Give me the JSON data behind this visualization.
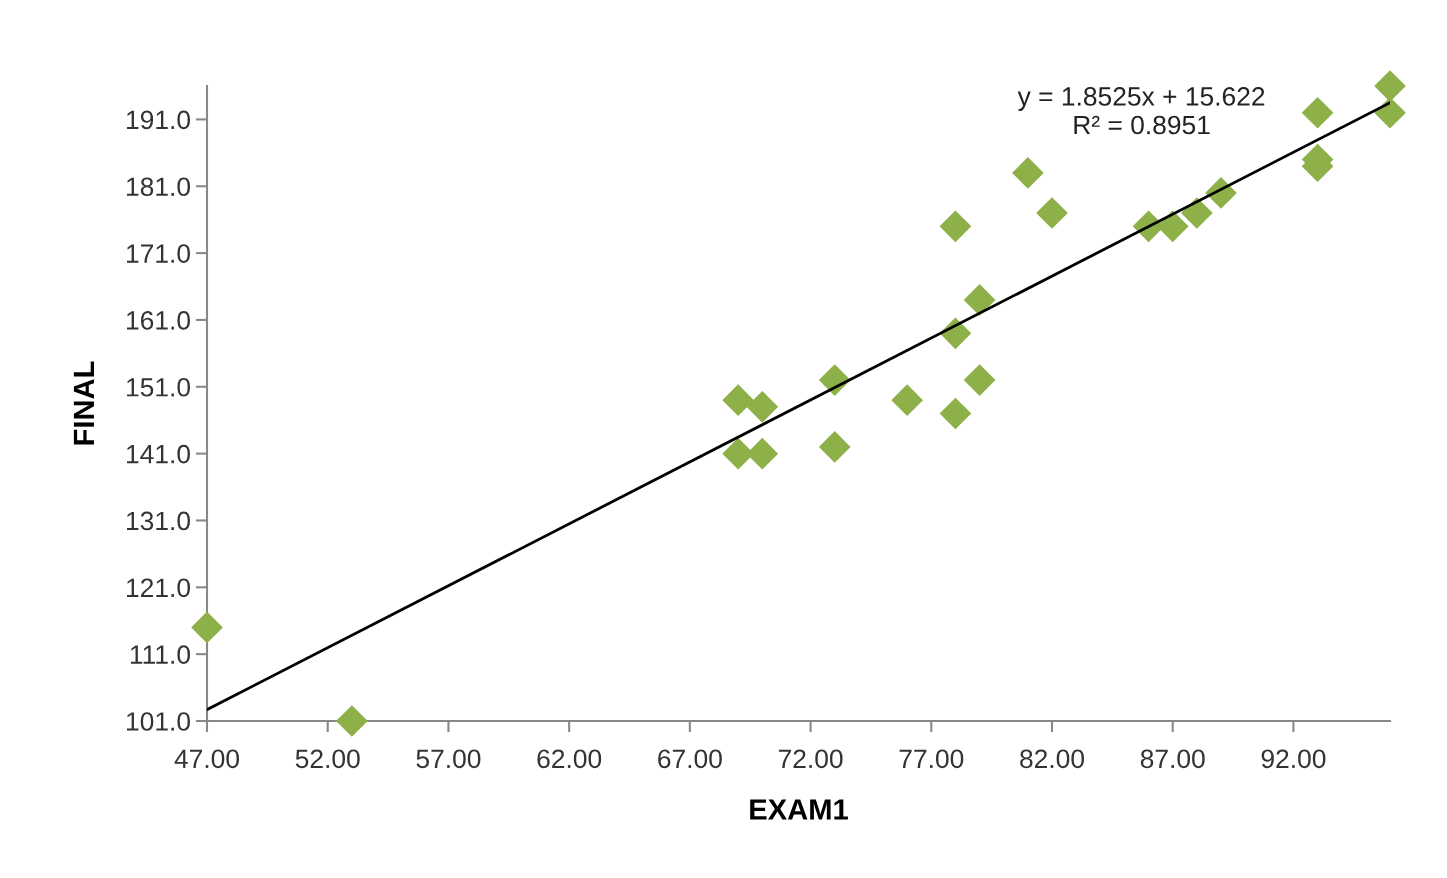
{
  "chart_data": {
    "type": "scatter",
    "xlabel": "EXAM1",
    "ylabel": "FINAL",
    "series": [
      {
        "color": "#8db048",
        "marker": "diamond",
        "x": [
          47,
          53,
          69,
          69,
          70,
          70,
          73,
          73,
          76,
          78,
          78,
          78,
          79,
          79,
          81,
          82,
          86,
          87,
          88,
          89,
          93,
          93,
          93,
          96,
          96
        ],
        "values": [
          115,
          101,
          149,
          141,
          148,
          141,
          152,
          142,
          149,
          175,
          159,
          147,
          164,
          152,
          183,
          177,
          175,
          175,
          177,
          180,
          192,
          185,
          184,
          196,
          192
        ]
      },
      {
        "type": "line",
        "color": "#000000",
        "marker": "none",
        "x": [
          47,
          96
        ],
        "values": [
          102.7,
          193.5
        ]
      }
    ],
    "annotations": [
      "y = 1.8525x + 15.622",
      "R² = 0.8951"
    ],
    "xlim": [
      47,
      96
    ],
    "ylim": [
      101,
      196
    ],
    "xticks": [
      {
        "value": 47,
        "label": "47.00"
      },
      {
        "value": 52,
        "label": "52.00"
      },
      {
        "value": 57,
        "label": "57.00"
      },
      {
        "value": 62,
        "label": "62.00"
      },
      {
        "value": 67,
        "label": "67.00"
      },
      {
        "value": 72,
        "label": "72.00"
      },
      {
        "value": 77,
        "label": "77.00"
      },
      {
        "value": 82,
        "label": "82.00"
      },
      {
        "value": 87,
        "label": "87.00"
      },
      {
        "value": 92,
        "label": "92.00"
      }
    ],
    "yticks": [
      {
        "value": 101,
        "label": "101.0"
      },
      {
        "value": 111,
        "label": "111.0"
      },
      {
        "value": 121,
        "label": "121.0"
      },
      {
        "value": 131,
        "label": "131.0"
      },
      {
        "value": 141,
        "label": "141.0"
      },
      {
        "value": 151,
        "label": "151.0"
      },
      {
        "value": 161,
        "label": "161.0"
      },
      {
        "value": 171,
        "label": "171.0"
      },
      {
        "value": 181,
        "label": "181.0"
      },
      {
        "value": 191,
        "label": "191.0"
      }
    ],
    "grid": false,
    "legend": false
  }
}
